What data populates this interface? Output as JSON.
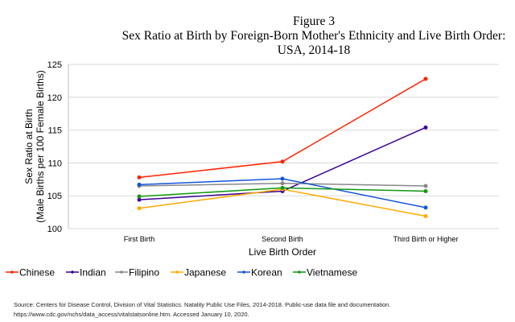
{
  "chart_data": {
    "type": "line",
    "title_line1": "Figure 3",
    "title_line2": "Sex Ratio at Birth by Foreign-Born Mother's Ethnicity and Live Birth Order:",
    "title_line3": "USA, 2014-18",
    "xlabel": "Live Birth Order",
    "ylabel_line1": "Sex Ratio at Birth",
    "ylabel_line2": "(Male Births per 100 Female Births)",
    "categories": [
      "First Birth",
      "Second Birth",
      "Third Birth or Higher"
    ],
    "ylim": [
      100,
      125
    ],
    "yticks": [
      100,
      105,
      110,
      115,
      120,
      125
    ],
    "grid": true,
    "legend": "bottom",
    "series": [
      {
        "name": "Chinese",
        "color": "#ff2200",
        "values": [
          107.8,
          110.2,
          122.8
        ]
      },
      {
        "name": "Indian",
        "color": "#3a0099",
        "values": [
          104.4,
          105.7,
          115.4
        ]
      },
      {
        "name": "Filipino",
        "color": "#888888",
        "values": [
          106.5,
          106.9,
          106.5
        ]
      },
      {
        "name": "Japanese",
        "color": "#ffaa00",
        "values": [
          103.1,
          106.0,
          101.9
        ]
      },
      {
        "name": "Korean",
        "color": "#1155dd",
        "values": [
          106.7,
          107.6,
          103.2
        ]
      },
      {
        "name": "Vietnamese",
        "color": "#119911",
        "values": [
          104.9,
          106.2,
          105.7
        ]
      }
    ]
  },
  "source": {
    "line1": "Source: Centers for Disease Control, Division of Vital Statistics. Natality Public Use Files, 2014-2018. Public-use data file and documentation.",
    "line2": "https://www.cdc.gov/nchs/data_access/vitalstatsonline.htm. Accessed January 10, 2020."
  }
}
